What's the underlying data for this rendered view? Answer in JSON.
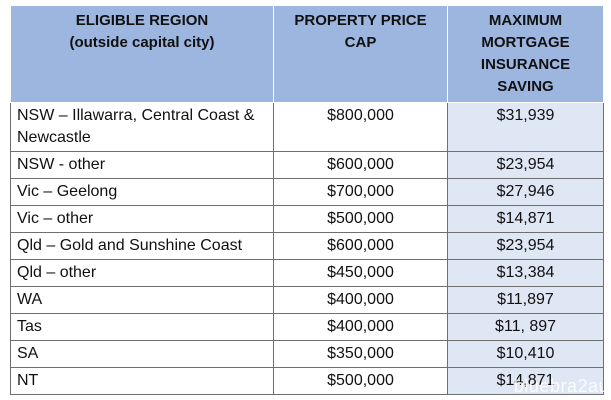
{
  "table": {
    "headers": {
      "region": [
        "ELIGIBLE REGION",
        "(outside capital city)"
      ],
      "price": [
        "PROPERTY PRICE",
        "CAP"
      ],
      "saving": [
        "MAXIMUM",
        "MORTGAGE",
        "INSURANCE",
        "SAVING"
      ]
    },
    "rows": [
      {
        "region": "NSW – Illawarra, Central Coast & Newcastle",
        "price": "$800,000",
        "saving": "$31,939"
      },
      {
        "region": "NSW - other",
        "price": "$600,000",
        "saving": "$23,954"
      },
      {
        "region": "Vic – Geelong",
        "price": "$700,000",
        "saving": "$27,946"
      },
      {
        "region": "Vic – other",
        "price": "$500,000",
        "saving": "$14,871"
      },
      {
        "region": "Qld – Gold and Sunshine Coast",
        "price": "$600,000",
        "saving": "$23,954"
      },
      {
        "region": "Qld – other",
        "price": "$450,000",
        "saving": "$13,384"
      },
      {
        "region": "WA",
        "price": "$400,000",
        "saving": "$11,897"
      },
      {
        "region": "Tas",
        "price": "$400,000",
        "saving": "$11, 897"
      },
      {
        "region": "SA",
        "price": "$350,000",
        "saving": "$10,410"
      },
      {
        "region": "NT",
        "price": "$500,000",
        "saving": "$14,871"
      }
    ]
  },
  "colors": {
    "header_background": "#9db6e0",
    "saving_column_background": "#dfe6f4",
    "grid_lines": "#6f6f6f"
  },
  "watermark": "bluebra2au"
}
